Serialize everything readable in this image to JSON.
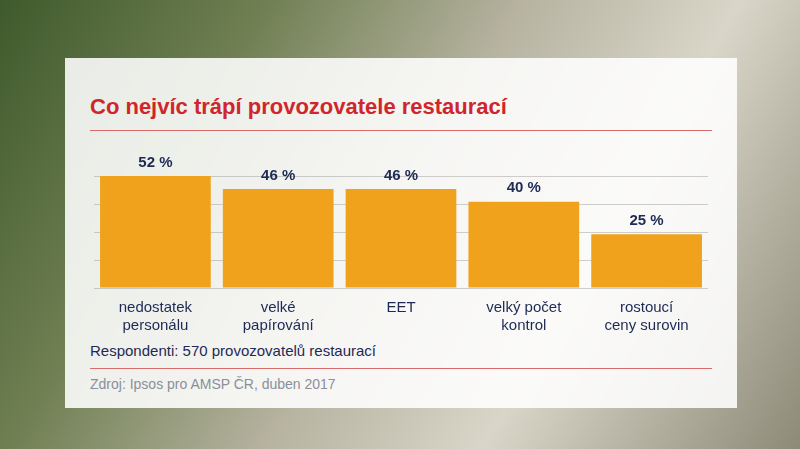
{
  "chart_data": {
    "type": "bar",
    "title": "Co nejvíc trápí provozovatele restaurací",
    "categories": [
      "nedostatek personálu",
      "velké papírování",
      "EET",
      "velký počet kontrol",
      "rostoucí ceny surovin"
    ],
    "values": [
      52,
      46,
      46,
      40,
      25
    ],
    "value_labels": [
      "52 %",
      "46 %",
      "46 %",
      "40 %",
      "25 %"
    ],
    "color": "#f0a21c",
    "ylim": [
      0,
      52
    ],
    "yticks": [
      0,
      13,
      26,
      39,
      52
    ],
    "grid": true,
    "data_labels": true,
    "tick_labels": "x",
    "respondents": "Respondenti: 570 provozovatelů restaurací",
    "source": "Zdroj: Ipsos pro AMSP ČR, duben 2017"
  }
}
